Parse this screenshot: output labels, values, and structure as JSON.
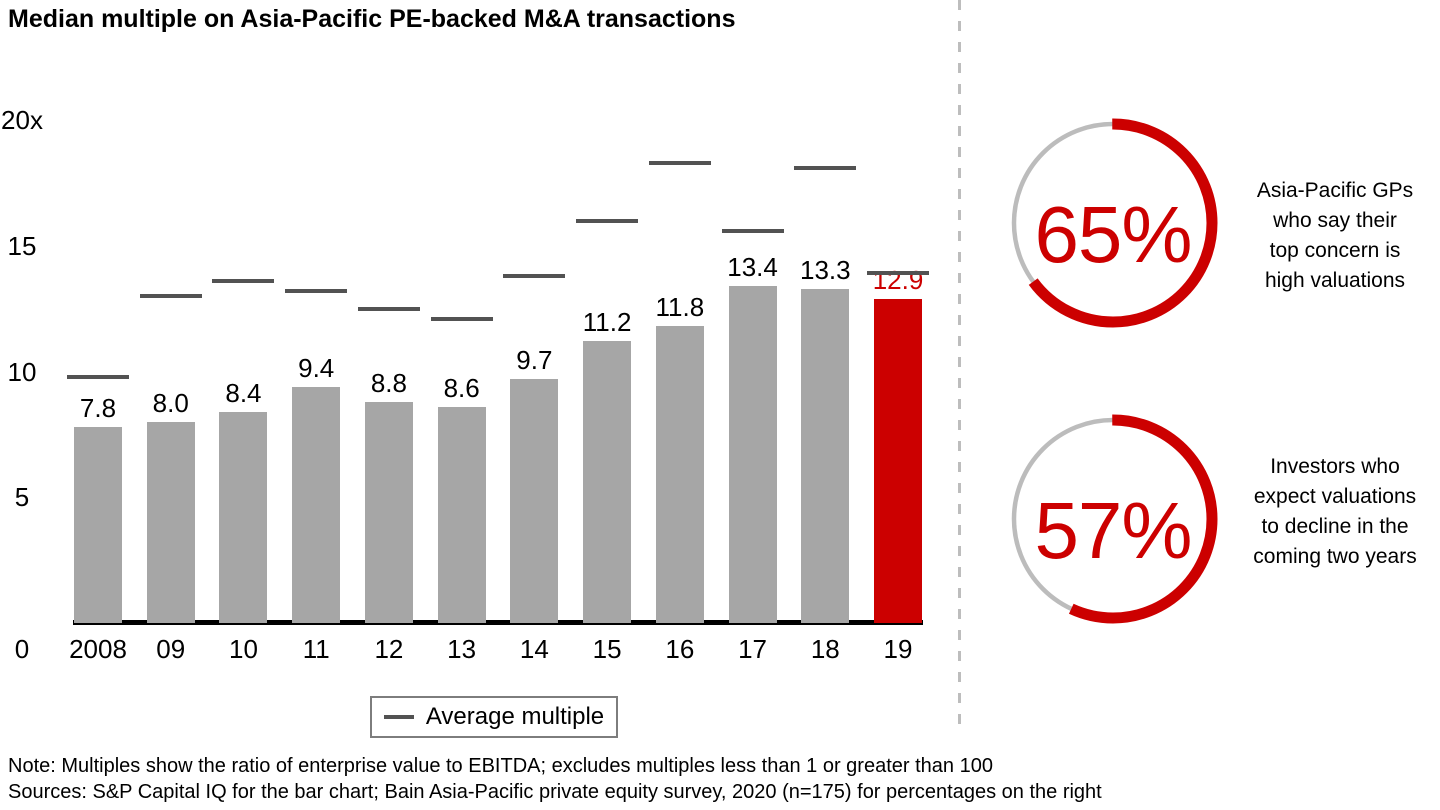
{
  "title": "Median multiple on Asia-Pacific PE-backed M&A transactions",
  "chart_data": {
    "type": "bar",
    "title": "Median multiple on Asia-Pacific PE-backed M&A transactions",
    "categories": [
      "2008",
      "09",
      "10",
      "11",
      "12",
      "13",
      "14",
      "15",
      "16",
      "17",
      "18",
      "19"
    ],
    "series": [
      {
        "name": "Median multiple",
        "values": [
          7.8,
          8.0,
          8.4,
          9.4,
          8.8,
          8.6,
          9.7,
          11.2,
          11.8,
          13.4,
          13.3,
          12.9
        ]
      },
      {
        "name": "Average multiple",
        "style": "horizontal-tick",
        "values": [
          9.8,
          13.0,
          13.6,
          13.2,
          12.5,
          12.1,
          13.8,
          16.0,
          18.3,
          15.6,
          18.1,
          13.9
        ]
      }
    ],
    "highlight_category": "19",
    "ylim": [
      0,
      20
    ],
    "y_ticks": [
      {
        "label": "20x",
        "value": 20
      },
      {
        "label": "15",
        "value": 15
      },
      {
        "label": "10",
        "value": 10
      },
      {
        "label": "5",
        "value": 5
      },
      {
        "label": "0",
        "value": 0
      }
    ],
    "grid": false,
    "legend": {
      "label": "Average multiple",
      "position": "bottom"
    },
    "colors": {
      "bar": "#a6a6a6",
      "highlight_bar": "#cc0000",
      "highlight_value_label": "#cc0000",
      "average_tick": "#525252",
      "axis": "#000000",
      "donut_track": "#bcbcbc",
      "donut_arc": "#cc0000",
      "divider": "#bdbdbd"
    }
  },
  "stats": [
    {
      "value": "65%",
      "pct": 65,
      "description": "Asia-Pacific GPs\nwho say their\ntop concern is\nhigh valuations"
    },
    {
      "value": "57%",
      "pct": 57,
      "description": "Investors who\nexpect valuations\nto decline in the\ncoming two years"
    }
  ],
  "footer": {
    "note": "Note: Multiples show the ratio of enterprise value to EBITDA; excludes multiples less than 1 or greater than 100",
    "sources": "Sources: S&P Capital IQ for the bar chart; Bain Asia-Pacific private equity survey, 2020 (n=175) for percentages on the right"
  }
}
